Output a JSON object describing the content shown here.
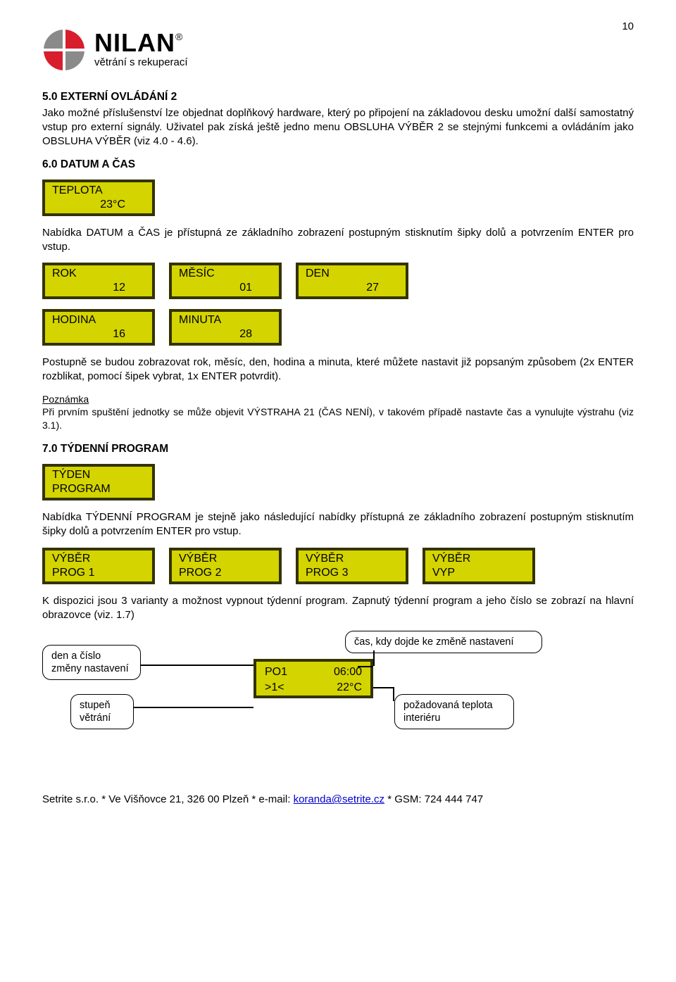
{
  "page_number": "10",
  "logo": {
    "name": "NILAN",
    "reg": "®",
    "sub": "větrání s rekuperací",
    "red": "#d81e2c",
    "gray": "#8a8a8a"
  },
  "sec5": {
    "title": "5.0 EXTERNÍ OVLÁDÁNÍ 2",
    "body": "Jako možné příslušenství lze objednat doplňkový hardware, který po připojení na základovou desku umožní další samostatný vstup pro externí signály. Uživatel pak získá ještě jedno menu OBSLUHA VÝBĚR 2 se stejnými funkcemi a ovládáním jako OBSLUHA VÝBĚR (viz 4.0 - 4.6)."
  },
  "sec6": {
    "title": "6.0 DATUM  A ČAS",
    "lcd_teplota": {
      "l1": "TEPLOTA",
      "l2": "23°C"
    },
    "body1": "Nabídka DATUM a ČAS je přístupná ze základního zobrazení postupným stisknutím šipky dolů a potvrzením ENTER pro vstup.",
    "rok": {
      "l1": "ROK",
      "l2": "12"
    },
    "mesic": {
      "l1": "MĚSÍC",
      "l2": "01"
    },
    "den": {
      "l1": "DEN",
      "l2": "27"
    },
    "hodina": {
      "l1": "HODINA",
      "l2": "16"
    },
    "minuta": {
      "l1": "MINUTA",
      "l2": "28"
    },
    "body2": "Postupně se budou zobrazovat rok, měsíc, den, hodina a minuta, které můžete nastavit již popsaným způsobem (2x ENTER rozblikat, pomocí šipek vybrat, 1x ENTER potvrdit).",
    "note_heading": "Poznámka",
    "note_body": "Při prvním spuštění jednotky se může objevit VÝSTRAHA 21 (ČAS NENÍ), v takovém případě nastavte čas a vynulujte výstrahu (viz 3.1)."
  },
  "sec7": {
    "title": "7.0 TÝDENNÍ PROGRAM",
    "lcd_tyden": {
      "l1": "TÝDEN",
      "l2": "PROGRAM"
    },
    "body1": "Nabídka TÝDENNÍ PROGRAM je stejně jako následující nabídky přístupná ze základního zobrazení postupným stisknutím šipky dolů a potvrzením ENTER pro vstup.",
    "prog1": {
      "l1": "VÝBĚR",
      "l2": "PROG   1"
    },
    "prog2": {
      "l1": "VÝBĚR",
      "l2": "PROG   2"
    },
    "prog3": {
      "l1": "VÝBĚR",
      "l2": "PROG   3"
    },
    "vyp": {
      "l1": "VÝBĚR",
      "l2": "VYP"
    },
    "body2": "K dispozici jsou 3 varianty a možnost vypnout týdenní program. Zapnutý týdenní program a jeho číslo se zobrazí na hlavní obrazovce (viz. 1.7)",
    "callouts": {
      "den": "den a číslo\nzměny nastavení",
      "stupen": "stupeň\nvětrání",
      "cas": "čas, kdy dojde ke změně nastavení",
      "teplota": "požadovaná teplota\ninteriéru"
    },
    "lcd_main": {
      "r1a": "PO1",
      "r1b": "06:00",
      "r2a": ">1<",
      "r2b": "22°C"
    }
  },
  "footer": {
    "text_pre": "Setrite s.r.o. * Ve Višňovce 21, 326 00 Plzeň * e-mail: ",
    "email": "koranda@setrite.cz",
    "text_post": " * GSM: 724 444 747"
  },
  "colors": {
    "lcd_bg": "#d4d400",
    "lcd_border": "#333300"
  }
}
